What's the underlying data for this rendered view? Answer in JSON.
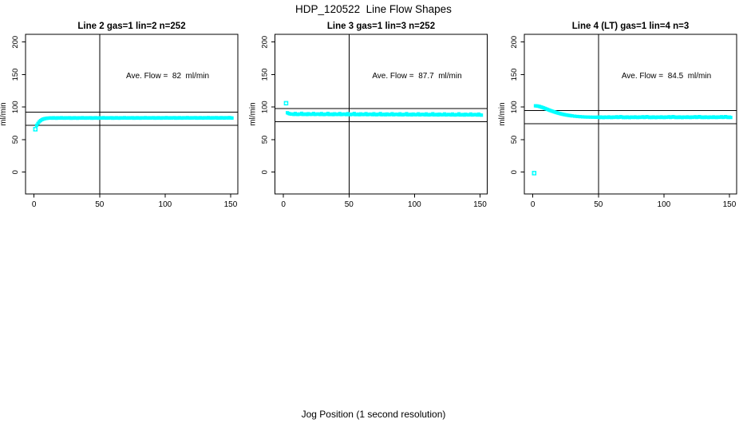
{
  "figure": {
    "title": "HDP_120522  Line Flow Shapes",
    "xlabel": "Jog Position (1 second resolution)",
    "background": "#ffffff",
    "point_color": "#00ffff",
    "axis_color": "#000000"
  },
  "chart_data": [
    {
      "type": "scatter",
      "title": "Line 2 gas=1 lin=2 n=252",
      "annotation": "Ave. Flow =  82  ml/min",
      "ave_flow_ml_min": 82,
      "ylabel": "ml/min",
      "xticks": [
        0,
        50,
        100,
        150
      ],
      "yticks": [
        0,
        50,
        100,
        150,
        200
      ],
      "xlim": [
        -6.5,
        155.5
      ],
      "ylim": [
        -33.5,
        211.9
      ],
      "grid": false,
      "vline_x": 50,
      "hlines_y": [
        92,
        72
      ],
      "head_points": [
        [
          1,
          66
        ]
      ],
      "curve_points": [
        [
          2,
          72
        ],
        [
          3,
          75
        ],
        [
          4,
          77.5
        ],
        [
          5,
          79.3
        ],
        [
          6,
          80.7
        ],
        [
          7,
          81.6
        ],
        [
          8,
          82.2
        ],
        [
          9,
          82.6
        ],
        [
          10,
          82.9
        ],
        [
          11,
          83.1
        ],
        [
          12,
          83.2
        ]
      ],
      "tail": {
        "x_start": 13,
        "x_end": 151,
        "y_start": 83.2,
        "y_end": 83.4,
        "jitter": [
          0.2,
          -0.2,
          0.4,
          0.0,
          -0.3,
          0.3,
          0.1,
          -0.1,
          0.5,
          0.0,
          -0.2,
          0.3,
          -0.1,
          0.2,
          0.4,
          -0.3
        ]
      }
    },
    {
      "type": "scatter",
      "title": "Line 3 gas=1 lin=3 n=252",
      "annotation": "Ave. Flow =  87.7  ml/min",
      "ave_flow_ml_min": 87.7,
      "ylabel": "ml/min",
      "xticks": [
        0,
        50,
        100,
        150
      ],
      "yticks": [
        0,
        50,
        100,
        150,
        200
      ],
      "xlim": [
        -6.5,
        155.5
      ],
      "ylim": [
        -33.5,
        211.9
      ],
      "grid": false,
      "vline_x": 50,
      "hlines_y": [
        97.7,
        77.7
      ],
      "head_points": [
        [
          2,
          106
        ]
      ],
      "curve_points": [
        [
          3,
          91.3
        ],
        [
          4,
          90.2
        ],
        [
          5,
          89.6
        ],
        [
          6,
          89.2
        ]
      ],
      "tail": {
        "x_start": 7,
        "x_end": 151,
        "y_start": 89.0,
        "y_end": 88.0,
        "jitter": [
          0.3,
          -0.2,
          1.2,
          0.0,
          -0.3,
          0.4,
          0.1,
          1.5,
          -0.2,
          0.0,
          0.5,
          -0.3,
          0.9,
          0.2,
          -0.1,
          0.3,
          1.3,
          -0.2,
          0.1,
          0.6
        ]
      }
    },
    {
      "type": "scatter",
      "title": "Line 4 (LT) gas=1 lin=4 n=3",
      "annotation": "Ave. Flow =  84.5  ml/min",
      "ave_flow_ml_min": 84.5,
      "ylabel": "ml/min",
      "xticks": [
        0,
        50,
        100,
        150
      ],
      "yticks": [
        0,
        50,
        100,
        150,
        200
      ],
      "xlim": [
        -6.5,
        155.5
      ],
      "ylim": [
        -33.5,
        211.9
      ],
      "grid": false,
      "vline_x": 50,
      "hlines_y": [
        94.5,
        74.5
      ],
      "head_points": [
        [
          1,
          -1.5
        ]
      ],
      "curve_points": [
        [
          2,
          102
        ],
        [
          3,
          101.8
        ],
        [
          4,
          101.5
        ],
        [
          5,
          101
        ],
        [
          6,
          100.4
        ],
        [
          7,
          99.7
        ],
        [
          8,
          99
        ],
        [
          9,
          98.2
        ],
        [
          10,
          97.4
        ],
        [
          11,
          96.6
        ],
        [
          12,
          95.8
        ],
        [
          13,
          95
        ],
        [
          14,
          94.3
        ],
        [
          15,
          93.6
        ],
        [
          16,
          92.9
        ],
        [
          17,
          92.2
        ],
        [
          18,
          91.6
        ],
        [
          19,
          91
        ],
        [
          20,
          90.4
        ],
        [
          21,
          89.9
        ],
        [
          22,
          89.4
        ],
        [
          23,
          88.9
        ],
        [
          24,
          88.5
        ],
        [
          25,
          88.1
        ],
        [
          26,
          87.7
        ],
        [
          27,
          87.4
        ],
        [
          28,
          87.1
        ],
        [
          29,
          86.8
        ],
        [
          30,
          86.5
        ],
        [
          32,
          86
        ],
        [
          34,
          85.6
        ],
        [
          36,
          85.3
        ],
        [
          38,
          85
        ],
        [
          40,
          84.8
        ],
        [
          42,
          84.7
        ],
        [
          44,
          84.6
        ],
        [
          46,
          84.5
        ],
        [
          48,
          84.4
        ],
        [
          49,
          84.4
        ]
      ],
      "tail": {
        "x_start": 50,
        "x_end": 151,
        "y_start": 84.3,
        "y_end": 84.4,
        "jitter": [
          0.3,
          -0.3,
          0.5,
          0.0,
          -0.4,
          0.4,
          0.1,
          -0.2,
          0.6,
          0.0,
          -0.3,
          0.4,
          -0.1,
          0.3,
          0.8,
          -0.2,
          0.2,
          1.0,
          0.4,
          -0.3
        ]
      }
    }
  ]
}
